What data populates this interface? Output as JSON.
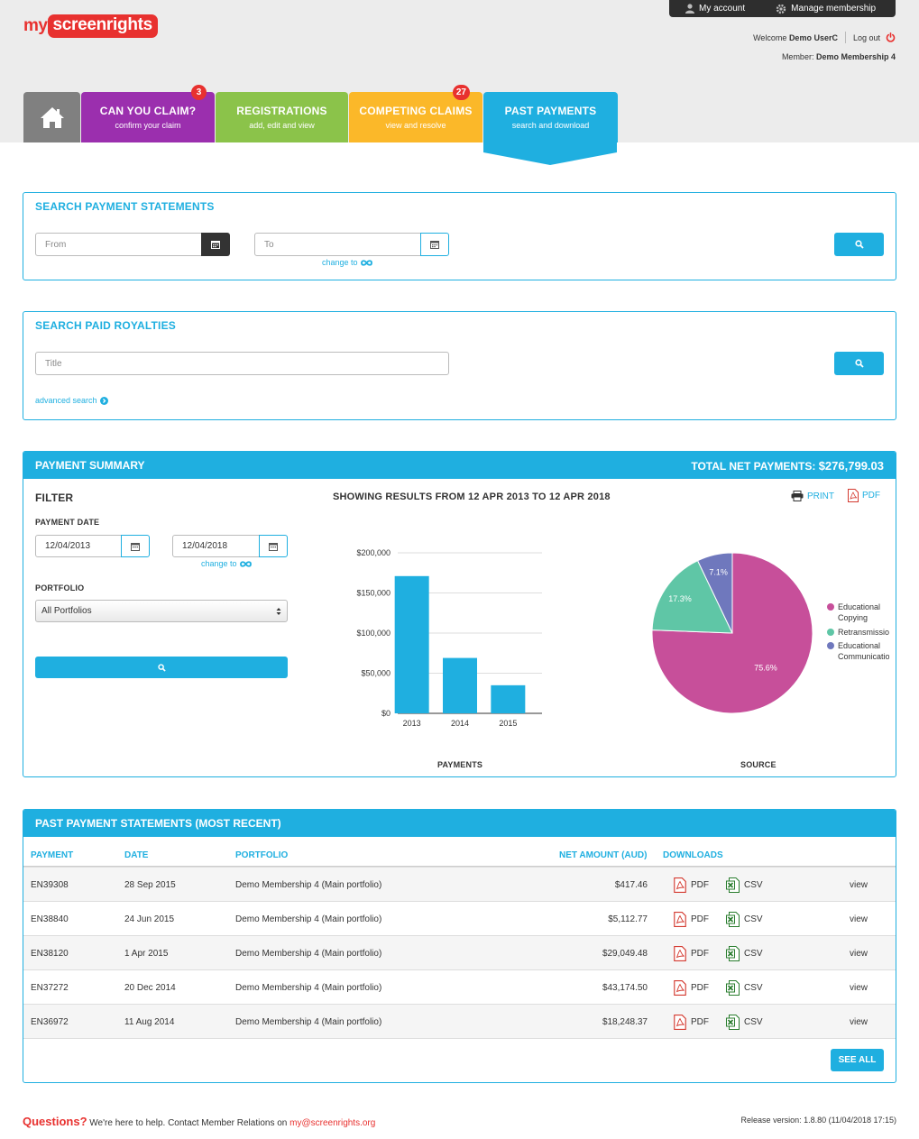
{
  "brand": {
    "part1": "my",
    "part2": "screenrights"
  },
  "topbar": {
    "account_label": "My account",
    "manage_label": "Manage membership"
  },
  "user": {
    "welcome_prefix": "Welcome",
    "name": "Demo UserC",
    "logout_label": "Log out",
    "member_prefix": "Member:",
    "membership": "Demo Membership 4"
  },
  "tabs": [
    {
      "title": "CAN YOU CLAIM?",
      "subtitle": "confirm your claim",
      "badge": "3",
      "color": "#9b2fae"
    },
    {
      "title": "REGISTRATIONS",
      "subtitle": "add, edit and view",
      "color": "#8bc34a"
    },
    {
      "title": "COMPETING CLAIMS",
      "subtitle": "view and resolve",
      "badge": "27",
      "color": "#fbb829"
    },
    {
      "title": "PAST PAYMENTS",
      "subtitle": "search and download",
      "color": "#1fafe0"
    }
  ],
  "search_statements": {
    "title": "SEARCH PAYMENT STATEMENTS",
    "from_placeholder": "From",
    "to_placeholder": "To",
    "change_to_label": "change to"
  },
  "search_royalties": {
    "title": "SEARCH PAID ROYALTIES",
    "title_placeholder": "Title",
    "advanced_label": "advanced search"
  },
  "summary": {
    "title": "PAYMENT SUMMARY",
    "total_label": "TOTAL NET PAYMENTS:",
    "total_value": "$276,799.03",
    "filter_label": "FILTER",
    "payment_date_label": "PAYMENT DATE",
    "date_from": "12/04/2013",
    "date_to": "12/04/2018",
    "change_to_label": "change to",
    "portfolio_label": "PORTFOLIO",
    "portfolio_value": "All Portfolios",
    "results_label": "SHOWING RESULTS FROM 12 APR 2013 TO 12 APR 2018",
    "print_label": "PRINT",
    "pdf_label": "PDF",
    "payments_caption": "PAYMENTS",
    "source_caption": "SOURCE"
  },
  "chart_data": [
    {
      "type": "bar",
      "categories": [
        "2013",
        "2014",
        "2015"
      ],
      "values": [
        171000,
        69000,
        35000
      ],
      "ylim": [
        0,
        200000
      ],
      "yticks": [
        "$0",
        "$50,000",
        "$100,000",
        "$150,000",
        "$200,000"
      ],
      "xlabel": "PAYMENTS",
      "color": "#1fafe0",
      "grid": true
    },
    {
      "type": "pie",
      "labels": [
        "Educational Copying",
        "Retransmission",
        "Educational Communication"
      ],
      "values": [
        75.6,
        17.3,
        7.1
      ],
      "value_labels": [
        "75.6%",
        "17.3%",
        "7.1%"
      ],
      "colors": [
        "#c74f9a",
        "#5fc6a6",
        "#6f78bd"
      ],
      "xlabel": "SOURCE",
      "legend": "right"
    }
  ],
  "statements": {
    "title": "PAST PAYMENT STATEMENTS (MOST RECENT)",
    "columns": [
      "PAYMENT",
      "DATE",
      "PORTFOLIO",
      "NET AMOUNT (AUD)",
      "DOWNLOADS"
    ],
    "pdf_label": "PDF",
    "csv_label": "CSV",
    "view_label": "view",
    "rows": [
      {
        "payment": "EN39308",
        "date": "28 Sep 2015",
        "portfolio": "Demo Membership 4 (Main portfolio)",
        "amount": "$417.46"
      },
      {
        "payment": "EN38840",
        "date": "24 Jun 2015",
        "portfolio": "Demo Membership 4 (Main portfolio)",
        "amount": "$5,112.77"
      },
      {
        "payment": "EN38120",
        "date": "1 Apr 2015",
        "portfolio": "Demo Membership 4 (Main portfolio)",
        "amount": "$29,049.48"
      },
      {
        "payment": "EN37272",
        "date": "20 Dec 2014",
        "portfolio": "Demo Membership 4 (Main portfolio)",
        "amount": "$43,174.50"
      },
      {
        "payment": "EN36972",
        "date": "11 Aug 2014",
        "portfolio": "Demo Membership 4 (Main portfolio)",
        "amount": "$18,248.37"
      }
    ],
    "see_all_label": "SEE ALL"
  },
  "footer": {
    "questions": "Questions?",
    "help_text": "We're here to help. Contact Member Relations on",
    "email": "my@screenrights.org",
    "release": "Release version: 1.8.80 (11/04/2018 17:15)"
  }
}
